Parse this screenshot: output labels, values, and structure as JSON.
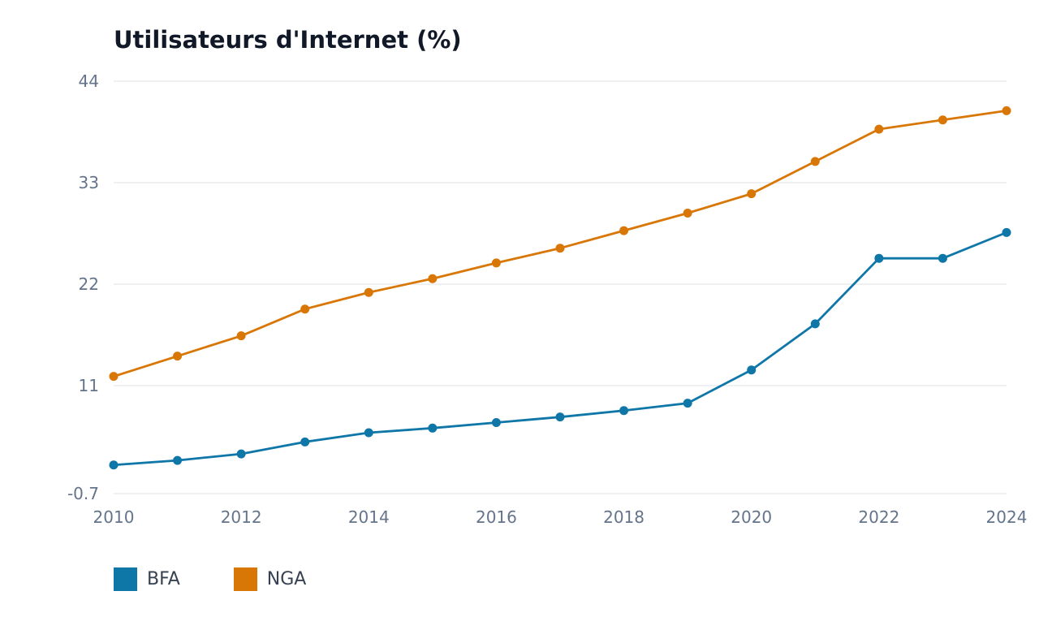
{
  "chart_data": {
    "type": "line",
    "title": "Utilisateurs d'Internet (%)",
    "xlabel": "",
    "ylabel": "",
    "x": [
      2010,
      2011,
      2012,
      2013,
      2014,
      2015,
      2016,
      2017,
      2018,
      2019,
      2020,
      2021,
      2022,
      2023,
      2024
    ],
    "x_ticks": [
      "2010",
      "2012",
      "2014",
      "2016",
      "2018",
      "2020",
      "2022",
      "2024"
    ],
    "y_ticks": [
      "44",
      "33",
      "22",
      "11",
      "-0.7"
    ],
    "y_tick_values": [
      44,
      33,
      22,
      11,
      -0.7
    ],
    "ylim": [
      -0.7,
      44
    ],
    "xlim": [
      2010,
      2024
    ],
    "grid": "horizontal",
    "legend_position": "bottom-left",
    "series": [
      {
        "name": "BFA",
        "color": "#0f76a8",
        "values": [
          2.4,
          2.9,
          3.6,
          4.9,
          5.9,
          6.4,
          7.0,
          7.6,
          8.3,
          9.1,
          12.7,
          17.7,
          24.8,
          24.8,
          27.6
        ]
      },
      {
        "name": "NGA",
        "color": "#d97706",
        "values": [
          12.0,
          14.2,
          16.4,
          19.3,
          21.1,
          22.6,
          24.3,
          25.9,
          27.8,
          29.7,
          31.8,
          35.3,
          38.8,
          39.8,
          40.8
        ]
      }
    ]
  }
}
